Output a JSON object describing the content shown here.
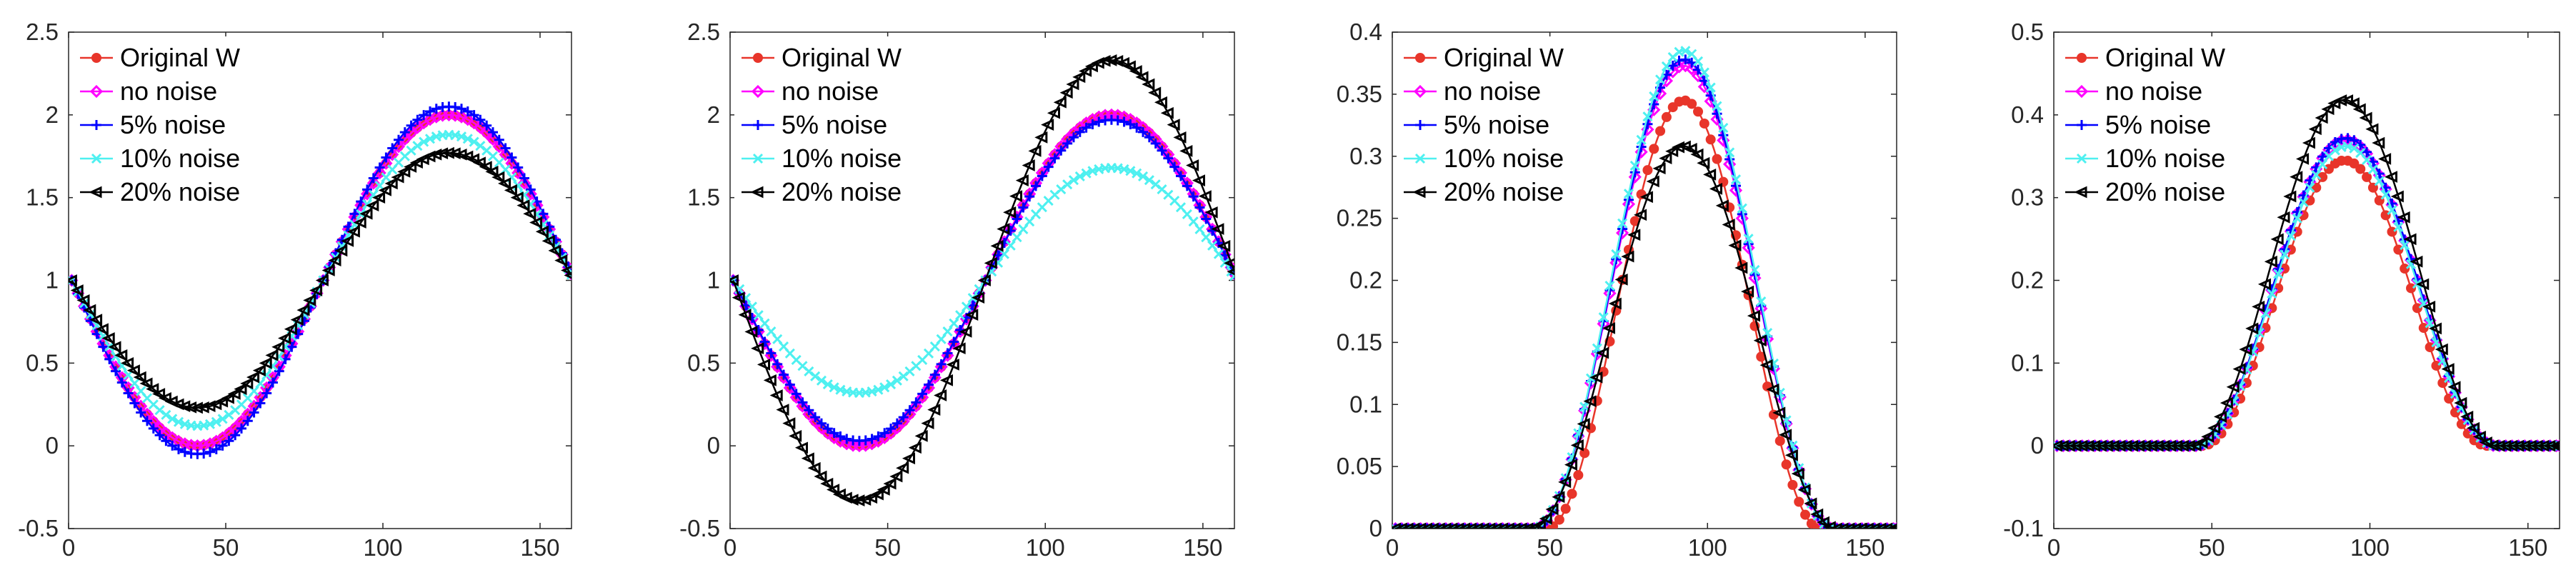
{
  "chart_data": [
    {
      "type": "line",
      "title": "",
      "xlabel": "",
      "ylabel": "",
      "xlim": [
        0,
        160
      ],
      "ylim": [
        -0.5,
        2.5
      ],
      "xticks": [
        0,
        50,
        100,
        150
      ],
      "xtick_labels": [
        "0",
        "50",
        "100",
        "150"
      ],
      "yticks": [
        -0.5,
        0,
        0.5,
        1,
        1.5,
        2,
        2.5
      ],
      "ytick_labels": [
        "-0.5",
        "0",
        "0.5",
        "1",
        "1.5",
        "2",
        "2.5"
      ],
      "grid": false,
      "legend_position": "top-left",
      "curve": {
        "form": "sine",
        "x_start": 1,
        "x_end": 160,
        "step": 1
      },
      "series": [
        {
          "name": "Original W",
          "color": "#e8352a",
          "marker": "dot",
          "offset": 1.0,
          "amplitude": 1.0
        },
        {
          "name": "no noise",
          "color": "#ff00ff",
          "marker": "diamond",
          "offset": 1.0,
          "amplitude": 1.0
        },
        {
          "name": "5% noise",
          "color": "#0000ff",
          "marker": "plus",
          "offset": 1.0,
          "amplitude": 1.05
        },
        {
          "name": "10% noise",
          "color": "#4ef0f0",
          "marker": "x",
          "offset": 1.0,
          "amplitude": 0.88
        },
        {
          "name": "20% noise",
          "color": "#000000",
          "marker": "triangle-left",
          "offset": 1.0,
          "amplitude": 0.77
        }
      ]
    },
    {
      "type": "line",
      "title": "",
      "xlabel": "",
      "ylabel": "",
      "xlim": [
        0,
        160
      ],
      "ylim": [
        -0.5,
        2.5
      ],
      "xticks": [
        0,
        50,
        100,
        150
      ],
      "xtick_labels": [
        "0",
        "50",
        "100",
        "150"
      ],
      "yticks": [
        -0.5,
        0,
        0.5,
        1,
        1.5,
        2,
        2.5
      ],
      "ytick_labels": [
        "-0.5",
        "0",
        "0.5",
        "1",
        "1.5",
        "2",
        "2.5"
      ],
      "grid": false,
      "legend_position": "top-left",
      "curve": {
        "form": "sine",
        "x_start": 1,
        "x_end": 160,
        "step": 1
      },
      "series": [
        {
          "name": "Original W",
          "color": "#e8352a",
          "marker": "dot",
          "offset": 1.0,
          "amplitude": 1.0
        },
        {
          "name": "no noise",
          "color": "#ff00ff",
          "marker": "diamond",
          "offset": 1.0,
          "amplitude": 1.0
        },
        {
          "name": "5% noise",
          "color": "#0000ff",
          "marker": "plus",
          "offset": 1.0,
          "amplitude": 0.97
        },
        {
          "name": "10% noise",
          "color": "#4ef0f0",
          "marker": "x",
          "offset": 1.0,
          "amplitude": 0.68
        },
        {
          "name": "20% noise",
          "color": "#000000",
          "marker": "triangle-left",
          "offset": 1.0,
          "amplitude": 1.33
        }
      ]
    },
    {
      "type": "line",
      "title": "",
      "xlabel": "",
      "ylabel": "",
      "xlim": [
        0,
        160
      ],
      "ylim": [
        0,
        0.4
      ],
      "xticks": [
        0,
        50,
        100,
        150
      ],
      "xtick_labels": [
        "0",
        "50",
        "100",
        "150"
      ],
      "yticks": [
        0,
        0.05,
        0.1,
        0.15,
        0.2,
        0.25,
        0.3,
        0.35,
        0.4
      ],
      "ytick_labels": [
        "0",
        "0.05",
        "0.1",
        "0.15",
        "0.2",
        "0.25",
        "0.3",
        "0.35",
        "0.4"
      ],
      "grid": false,
      "legend_position": "top-left",
      "curve": {
        "form": "bump",
        "x_start": 1,
        "x_end": 160,
        "step": 1,
        "support_start": 45,
        "support_end": 140
      },
      "series": [
        {
          "name": "Original W",
          "color": "#e8352a",
          "marker": "dot",
          "peak": 0.345,
          "support_start": 49,
          "support_end": 136
        },
        {
          "name": "no noise",
          "color": "#ff00ff",
          "marker": "diamond",
          "peak": 0.373
        },
        {
          "name": "5% noise",
          "color": "#0000ff",
          "marker": "plus",
          "peak": 0.378
        },
        {
          "name": "10% noise",
          "color": "#4ef0f0",
          "marker": "x",
          "peak": 0.385
        },
        {
          "name": "20% noise",
          "color": "#000000",
          "marker": "triangle-left",
          "peak": 0.308,
          "support_start": 44,
          "support_end": 141
        }
      ]
    },
    {
      "type": "line",
      "title": "",
      "xlabel": "",
      "ylabel": "",
      "xlim": [
        0,
        160
      ],
      "ylim": [
        -0.1,
        0.5
      ],
      "xticks": [
        0,
        50,
        100,
        150
      ],
      "xtick_labels": [
        "0",
        "50",
        "100",
        "150"
      ],
      "yticks": [
        -0.1,
        0,
        0.1,
        0.2,
        0.3,
        0.4,
        0.5
      ],
      "ytick_labels": [
        "-0.1",
        "0",
        "0.1",
        "0.2",
        "0.3",
        "0.4",
        "0.5"
      ],
      "grid": false,
      "legend_position": "top-left",
      "curve": {
        "form": "bump",
        "x_start": 1,
        "x_end": 160,
        "step": 1,
        "support_start": 45,
        "support_end": 140
      },
      "series": [
        {
          "name": "Original W",
          "color": "#e8352a",
          "marker": "dot",
          "peak": 0.345,
          "support_start": 47,
          "support_end": 137
        },
        {
          "name": "no noise",
          "color": "#ff00ff",
          "marker": "diamond",
          "peak": 0.37
        },
        {
          "name": "5% noise",
          "color": "#0000ff",
          "marker": "plus",
          "peak": 0.372
        },
        {
          "name": "10% noise",
          "color": "#4ef0f0",
          "marker": "x",
          "peak": 0.362
        },
        {
          "name": "20% noise",
          "color": "#000000",
          "marker": "triangle-left",
          "peak": 0.418,
          "support_start": 44,
          "support_end": 140
        }
      ]
    }
  ]
}
